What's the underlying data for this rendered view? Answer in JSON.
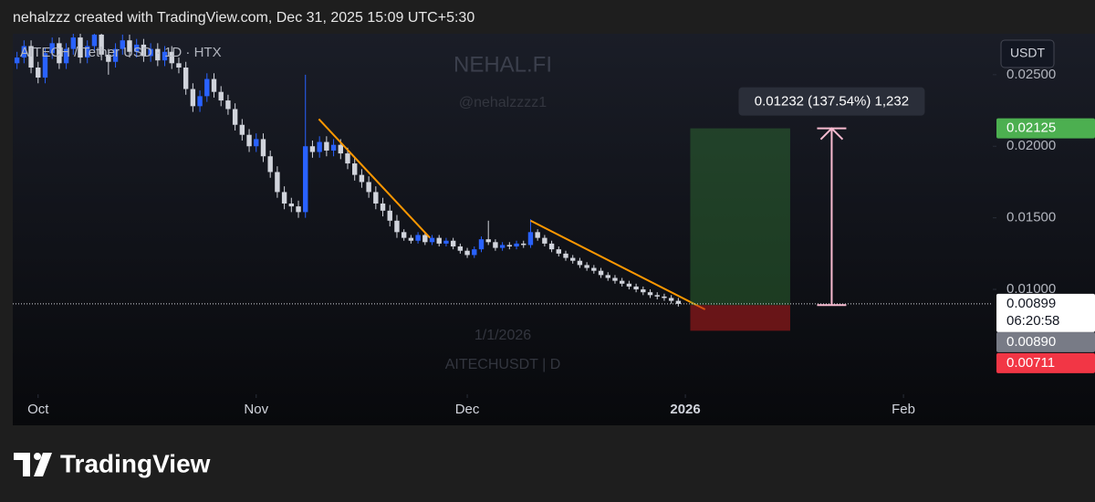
{
  "header": {
    "text": "nehalzzz created with TradingView.com, Dec 31, 2025 15:09 UTC+5:30"
  },
  "chart_data": {
    "type": "candlestick",
    "title": "AITECH / Tether USD · 1D · HTX",
    "watermark": {
      "title": "NEHAL.FI",
      "handle": "@nehalzzzz1",
      "date": "1/1/2026",
      "symbol": "AITECHUSDT | D"
    },
    "currency": "USDT",
    "up_color": "#2962ff",
    "down_color": "#d1d4dc",
    "open": [
      0.0258,
      0.0262,
      0.027,
      0.0255,
      0.0248,
      0.0265,
      0.0272,
      0.0258,
      0.0268,
      0.0276,
      0.0262,
      0.027,
      0.0278,
      0.0264,
      0.0259,
      0.0268,
      0.0274,
      0.0266,
      0.0271,
      0.0263,
      0.0268,
      0.026,
      0.0266,
      0.0258,
      0.0255,
      0.024,
      0.0228,
      0.0235,
      0.0247,
      0.0238,
      0.0232,
      0.0226,
      0.0215,
      0.0208,
      0.02,
      0.0205,
      0.0193,
      0.0182,
      0.0168,
      0.016,
      0.0158,
      0.0154,
      0.02,
      0.0196,
      0.0203,
      0.0197,
      0.0201,
      0.0195,
      0.0188,
      0.018,
      0.0175,
      0.0168,
      0.016,
      0.0155,
      0.0148,
      0.014,
      0.0136,
      0.0134,
      0.0138,
      0.0133,
      0.0136,
      0.0132,
      0.0134,
      0.013,
      0.0127,
      0.0124,
      0.0128,
      0.0135,
      0.0133,
      0.0129,
      0.0131,
      0.013,
      0.0132,
      0.0131,
      0.014,
      0.0136,
      0.0132,
      0.0128,
      0.0125,
      0.0122,
      0.012,
      0.0117,
      0.0115,
      0.0113,
      0.011,
      0.0108,
      0.0106,
      0.0104,
      0.0102,
      0.01,
      0.0098,
      0.0096,
      0.0095,
      0.0094,
      0.0092
    ],
    "high": [
      0.0266,
      0.0274,
      0.0274,
      0.0259,
      0.0269,
      0.0276,
      0.0276,
      0.0272,
      0.028,
      0.028,
      0.0274,
      0.0282,
      0.0282,
      0.0268,
      0.0272,
      0.0278,
      0.0278,
      0.0275,
      0.0275,
      0.0272,
      0.0272,
      0.027,
      0.027,
      0.0262,
      0.0259,
      0.0244,
      0.0239,
      0.0251,
      0.0251,
      0.0242,
      0.0236,
      0.023,
      0.0219,
      0.0212,
      0.0209,
      0.0209,
      0.0197,
      0.0186,
      0.0172,
      0.0164,
      0.0162,
      0.025,
      0.0204,
      0.0207,
      0.0207,
      0.0205,
      0.0205,
      0.0199,
      0.0192,
      0.0184,
      0.0179,
      0.0172,
      0.0164,
      0.0159,
      0.0152,
      0.0142,
      0.0138,
      0.014,
      0.014,
      0.0138,
      0.0138,
      0.0136,
      0.0136,
      0.0132,
      0.0129,
      0.013,
      0.0137,
      0.0148,
      0.0135,
      0.0133,
      0.0133,
      0.0134,
      0.0134,
      0.0149,
      0.0142,
      0.0138,
      0.0134,
      0.013,
      0.0127,
      0.0124,
      0.0122,
      0.0119,
      0.0117,
      0.0115,
      0.0112,
      0.011,
      0.0108,
      0.0106,
      0.0104,
      0.0102,
      0.01,
      0.0098,
      0.0097,
      0.0096,
      0.0094
    ],
    "low": [
      0.0254,
      0.0258,
      0.0251,
      0.0244,
      0.0244,
      0.0261,
      0.0254,
      0.0254,
      0.0264,
      0.0258,
      0.0258,
      0.0266,
      0.026,
      0.025,
      0.0255,
      0.0264,
      0.0262,
      0.0262,
      0.0259,
      0.0259,
      0.0256,
      0.0256,
      0.0254,
      0.0251,
      0.0236,
      0.0224,
      0.0224,
      0.0231,
      0.0234,
      0.0228,
      0.0222,
      0.0211,
      0.0204,
      0.0196,
      0.0196,
      0.0189,
      0.0178,
      0.0164,
      0.0156,
      0.0154,
      0.015,
      0.015,
      0.0192,
      0.0192,
      0.0193,
      0.0193,
      0.0191,
      0.0184,
      0.0176,
      0.0171,
      0.0164,
      0.0156,
      0.0151,
      0.0144,
      0.0136,
      0.0134,
      0.0132,
      0.0132,
      0.0131,
      0.0131,
      0.013,
      0.013,
      0.0128,
      0.0125,
      0.0122,
      0.0122,
      0.0126,
      0.0131,
      0.0127,
      0.0127,
      0.0128,
      0.0128,
      0.0129,
      0.0129,
      0.0134,
      0.013,
      0.0126,
      0.0123,
      0.012,
      0.0118,
      0.0115,
      0.0113,
      0.0111,
      0.0108,
      0.0106,
      0.0104,
      0.0102,
      0.01,
      0.0098,
      0.0096,
      0.0094,
      0.0093,
      0.0092,
      0.009,
      0.0088
    ],
    "close": [
      0.0262,
      0.027,
      0.0255,
      0.0248,
      0.0265,
      0.0272,
      0.0258,
      0.0268,
      0.0276,
      0.0262,
      0.027,
      0.0278,
      0.0264,
      0.0259,
      0.0268,
      0.0274,
      0.0266,
      0.0271,
      0.0263,
      0.0268,
      0.026,
      0.0266,
      0.0258,
      0.0255,
      0.024,
      0.0228,
      0.0235,
      0.0247,
      0.0238,
      0.0232,
      0.0226,
      0.0215,
      0.0208,
      0.02,
      0.0205,
      0.0193,
      0.0182,
      0.0168,
      0.016,
      0.0158,
      0.0154,
      0.02,
      0.0196,
      0.0203,
      0.0197,
      0.0201,
      0.0195,
      0.0188,
      0.018,
      0.0175,
      0.0168,
      0.016,
      0.0155,
      0.0148,
      0.014,
      0.0136,
      0.0134,
      0.0138,
      0.0133,
      0.0136,
      0.0132,
      0.0134,
      0.013,
      0.0127,
      0.0124,
      0.0128,
      0.0135,
      0.0133,
      0.0129,
      0.0131,
      0.013,
      0.0132,
      0.0131,
      0.014,
      0.0136,
      0.0132,
      0.0128,
      0.0125,
      0.0122,
      0.012,
      0.0117,
      0.0115,
      0.0113,
      0.011,
      0.0108,
      0.0106,
      0.0104,
      0.0102,
      0.01,
      0.0098,
      0.0096,
      0.0095,
      0.0094,
      0.0092,
      0.00899
    ],
    "xlim": [
      -0.6,
      138.7
    ],
    "xticks": [
      {
        "value": 3,
        "label": "Oct"
      },
      {
        "value": 34,
        "label": "Nov"
      },
      {
        "value": 64,
        "label": "Dec"
      },
      {
        "value": 95,
        "label": "2026",
        "bold": true
      },
      {
        "value": 126,
        "label": "Feb"
      }
    ],
    "ylim": [
      0.00267,
      0.02786
    ],
    "yticks": [
      {
        "value": 0.025,
        "label": "0.02500"
      },
      {
        "value": 0.02,
        "label": "0.02000"
      },
      {
        "value": 0.015,
        "label": "0.01500"
      },
      {
        "value": 0.01,
        "label": "0.01000"
      }
    ],
    "last_price": {
      "value": 0.00899,
      "label": "0.00899",
      "countdown": "06:20:58"
    },
    "trendline_color": "#ff9800",
    "trendlines": [
      {
        "x": [
          42.9,
          58.7
        ],
        "y": [
          0.0219,
          0.0136
        ]
      },
      {
        "x": [
          73,
          97.8
        ],
        "y": [
          0.0148,
          0.0086
        ]
      }
    ],
    "position": {
      "x": [
        95.7,
        109.9
      ],
      "entry": {
        "value": 0.0089,
        "label": "0.00890"
      },
      "target": {
        "value": 0.02125,
        "label": "0.02125"
      },
      "stop": {
        "value": 0.00711,
        "label": "0.00711"
      }
    },
    "measure": {
      "x": 115.8,
      "label": "0.01232 (137.54%) 1,232"
    }
  },
  "footer": {
    "brand": "TradingView"
  }
}
